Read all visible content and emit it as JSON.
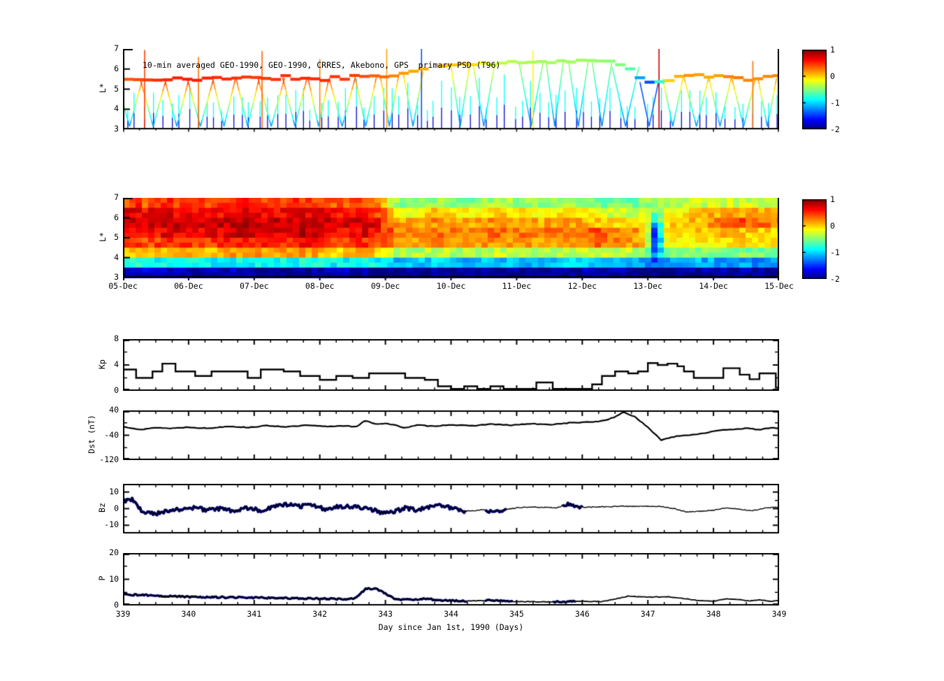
{
  "shared_x": {
    "label": "Day since Jan 1st, 1990 (Days)",
    "lim": [
      339,
      349
    ],
    "tick_values": [
      339,
      340,
      341,
      342,
      343,
      344,
      345,
      346,
      347,
      348,
      349
    ],
    "tick_labels": [
      "339",
      "340",
      "341",
      "342",
      "343",
      "344",
      "345",
      "346",
      "347",
      "348",
      "349"
    ],
    "minor_step": 0.25
  },
  "style": {
    "axis_color": "#000000",
    "background": "#ffffff",
    "highlight_color": "#000080"
  },
  "chart_data": [
    {
      "name": "psd-scatter",
      "type": "scatter",
      "title": "10-min averaged GEO-1990, GEO-1990, CRRES, Akebono, GPS  primary PSD (T96)",
      "ylabel": "L*",
      "ylim": [
        3,
        7
      ],
      "yticks": {
        "major": [
          7,
          6,
          5,
          4,
          3
        ],
        "labels": [
          "7",
          "6",
          "5",
          "4",
          "3"
        ]
      },
      "xlim": [
        339,
        349
      ],
      "colorbar": {
        "lim": [
          -2,
          1
        ],
        "tick_values": [
          1,
          0,
          -1,
          -2
        ],
        "tick_labels": [
          "1",
          "0",
          "-1",
          "-2"
        ]
      },
      "geo_band": {
        "t": [
          339.0,
          339.5,
          340.0,
          340.5,
          341.0,
          341.5,
          342.0,
          342.5,
          343.0,
          343.3,
          343.7,
          344.0,
          344.3,
          344.7,
          345.0,
          345.5,
          346.0,
          346.3,
          346.6,
          346.8,
          346.95,
          347.1,
          347.3,
          347.6,
          348.0,
          348.3,
          348.6,
          349.0
        ],
        "L": [
          5.5,
          5.45,
          5.5,
          5.6,
          5.5,
          5.6,
          5.5,
          5.6,
          5.7,
          5.8,
          6.1,
          6.2,
          6.3,
          6.3,
          6.3,
          6.4,
          6.45,
          6.4,
          6.2,
          5.9,
          5.4,
          5.3,
          5.5,
          5.6,
          5.7,
          5.6,
          5.5,
          5.6
        ],
        "psd": [
          0.35,
          0.5,
          0.55,
          0.5,
          0.45,
          0.5,
          0.5,
          0.45,
          0.3,
          0.15,
          0.1,
          0.05,
          0.0,
          -0.3,
          -0.35,
          -0.4,
          -0.4,
          -0.45,
          -0.5,
          -0.7,
          -1.6,
          -1.2,
          0.0,
          0.2,
          0.1,
          0.3,
          0.2,
          0.25
        ]
      },
      "crres_vees": {
        "t_start": 339.1,
        "period": 0.36,
        "half_width": 0.16,
        "L_bottom": 3.15,
        "psd_bottom": -1.3
      },
      "small_spikes": {
        "spacing": 0.134,
        "L_base": 3.0,
        "L_top_min": 3.9,
        "L_top_max": 5.1,
        "psd_top": -0.85,
        "psd_bottom": -1.75
      },
      "tall_spikes": [
        {
          "t": 339.33,
          "psd": 0.45,
          "L_top": 6.95
        },
        {
          "t": 340.15,
          "psd": 0.3,
          "L_top": 6.6
        },
        {
          "t": 341.12,
          "psd": 0.35,
          "L_top": 6.9
        },
        {
          "t": 342.0,
          "psd": 0.25,
          "L_top": 6.5
        },
        {
          "t": 343.02,
          "psd": 0.15,
          "L_top": 7.0
        },
        {
          "t": 343.55,
          "psd": -1.4,
          "L_top": 7.0
        },
        {
          "t": 345.25,
          "psd": -0.1,
          "L_top": 6.9
        },
        {
          "t": 347.17,
          "psd": 0.8,
          "L_top": 7.0
        },
        {
          "t": 348.6,
          "psd": 0.3,
          "L_top": 6.4
        }
      ]
    },
    {
      "name": "psd-heatmap",
      "type": "heatmap",
      "ylabel": "L*",
      "ylim": [
        3,
        7
      ],
      "yticks": {
        "major": [
          7,
          6,
          5,
          4,
          3
        ],
        "labels": [
          "7",
          "6",
          "5",
          "4",
          "3"
        ]
      },
      "xlim": [
        339,
        349
      ],
      "xtick_labels": [
        "05-Dec",
        "06-Dec",
        "07-Dec",
        "08-Dec",
        "09-Dec",
        "10-Dec",
        "11-Dec",
        "12-Dec",
        "13-Dec",
        "14-Dec",
        "15-Dec"
      ],
      "colorbar": {
        "lim": [
          -2,
          1
        ],
        "tick_values": [
          1,
          0,
          -1,
          -2
        ],
        "tick_labels": [
          "1",
          "0",
          "-1",
          "-2"
        ]
      },
      "grid": {
        "t0": 339,
        "dt": 0.5,
        "L_top": 7,
        "dL": 0.5,
        "rows": [
          [
            0.3,
            0.5,
            0.4,
            0.55,
            0.45,
            0.5,
            0.35,
            0.45,
            -0.55,
            -0.4,
            -0.5,
            -0.35,
            -0.45,
            -0.35,
            -0.5,
            -0.55,
            -0.4,
            -0.3,
            -0.25,
            -0.3
          ],
          [
            0.6,
            0.7,
            0.55,
            0.7,
            0.6,
            0.7,
            0.6,
            0.65,
            -0.15,
            0.0,
            -0.1,
            0.0,
            -0.1,
            0.0,
            -0.2,
            -0.3,
            -0.2,
            0.0,
            0.2,
            0.1
          ],
          [
            0.7,
            0.8,
            0.7,
            0.85,
            0.75,
            0.8,
            0.7,
            0.8,
            0.1,
            0.2,
            0.1,
            0.2,
            0.1,
            0.2,
            0.0,
            -0.1,
            0.0,
            0.1,
            0.45,
            0.3
          ],
          [
            0.55,
            0.7,
            0.6,
            0.8,
            0.7,
            0.8,
            0.6,
            0.7,
            0.2,
            0.3,
            0.2,
            0.3,
            0.25,
            0.3,
            0.4,
            0.2,
            0.0,
            0.0,
            0.1,
            0.0
          ],
          [
            0.4,
            0.5,
            0.45,
            0.6,
            0.5,
            0.6,
            0.45,
            0.5,
            0.1,
            0.2,
            0.1,
            0.2,
            0.15,
            0.2,
            0.3,
            0.2,
            -0.1,
            -0.1,
            0.0,
            -0.1
          ],
          [
            0.0,
            0.1,
            0.0,
            0.2,
            0.1,
            0.2,
            0.0,
            0.1,
            -0.4,
            -0.3,
            -0.4,
            -0.3,
            -0.4,
            -0.3,
            -0.25,
            -0.3,
            -0.6,
            -0.45,
            -0.5,
            -0.5
          ],
          [
            -0.9,
            -0.8,
            -0.9,
            -0.85,
            -0.9,
            -0.8,
            -0.9,
            -0.85,
            -1.1,
            -1.0,
            -1.1,
            -1.05,
            -1.1,
            -1.0,
            -1.1,
            -1.05,
            -1.2,
            -1.1,
            -1.15,
            -1.2
          ],
          [
            -1.7,
            -1.8,
            -1.9,
            -1.8,
            -2.0,
            -1.9,
            -1.8,
            -1.9,
            -2.0,
            -1.9,
            -2.0,
            -1.9,
            -2.0,
            -1.9,
            -1.85,
            -1.9,
            -2.0,
            -1.9,
            -1.85,
            -1.9
          ]
        ]
      },
      "dip": {
        "t": 347.12,
        "L": 5.1,
        "sigma_t": 0.1,
        "sigma_L": 0.9,
        "depth": 1.7
      }
    },
    {
      "name": "kp",
      "type": "step",
      "ylabel": "Kp",
      "ylim": [
        0,
        8
      ],
      "yticks": {
        "major": [
          8,
          4,
          0
        ],
        "labels": [
          "8",
          "4",
          "0"
        ],
        "minor": [
          2,
          6
        ]
      },
      "t": [
        339.0,
        339.2,
        339.45,
        339.6,
        339.8,
        340.1,
        340.35,
        340.9,
        341.1,
        341.45,
        341.7,
        342.0,
        342.25,
        342.5,
        342.75,
        343.3,
        343.6,
        343.8,
        344.0,
        344.2,
        344.4,
        344.6,
        344.8,
        345.3,
        345.55,
        346.15,
        346.3,
        346.5,
        346.7,
        346.85,
        347.0,
        347.15,
        347.3,
        347.45,
        347.55,
        347.7,
        348.05,
        348.15,
        348.4,
        348.55,
        348.7,
        348.95
      ],
      "v": [
        3.3,
        2.0,
        3.0,
        4.2,
        3.0,
        2.3,
        3.0,
        2.0,
        3.3,
        3.0,
        2.3,
        1.7,
        2.3,
        2.0,
        2.7,
        2.0,
        1.7,
        0.7,
        0.3,
        0.7,
        0.3,
        0.7,
        0.3,
        1.3,
        0.3,
        1.0,
        2.3,
        3.0,
        2.7,
        3.0,
        4.3,
        4.0,
        4.2,
        3.8,
        3.0,
        2.0,
        2.0,
        3.5,
        2.5,
        1.8,
        2.7,
        0.5
      ]
    },
    {
      "name": "dst",
      "type": "line",
      "ylabel": "Dst (nT)",
      "ylim": [
        -120,
        40
      ],
      "yticks": {
        "major": [
          40,
          -40,
          -120
        ],
        "labels": [
          "40",
          "-40",
          "-120"
        ],
        "minor": [
          0,
          -80
        ]
      },
      "noise": 1.2,
      "t": [
        339.0,
        339.3,
        339.5,
        339.7,
        340.0,
        340.3,
        340.6,
        340.9,
        341.2,
        341.5,
        341.8,
        342.1,
        342.4,
        342.55,
        342.7,
        342.85,
        343.0,
        343.15,
        343.3,
        343.5,
        343.7,
        344.0,
        344.3,
        344.6,
        344.9,
        345.2,
        345.5,
        345.8,
        346.1,
        346.3,
        346.5,
        346.62,
        346.8,
        347.0,
        347.2,
        347.45,
        347.7,
        348.0,
        348.2,
        348.5,
        348.7,
        348.9,
        349.0
      ],
      "v": [
        -12,
        -22,
        -15,
        -18,
        -14,
        -18,
        -11,
        -15,
        -9,
        -13,
        -8,
        -12,
        -9,
        -14,
        8,
        -4,
        -2,
        -8,
        -16,
        -7,
        -11,
        -6,
        -10,
        -4,
        -8,
        -3,
        -6,
        0,
        2,
        6,
        18,
        35,
        20,
        -15,
        -55,
        -42,
        -38,
        -28,
        -22,
        -18,
        -22,
        -16,
        -17
      ]
    },
    {
      "name": "bz",
      "type": "line",
      "ylabel": "Bz",
      "ylim": [
        -15,
        15
      ],
      "yticks": {
        "major": [
          10,
          0,
          -10
        ],
        "labels": [
          "10",
          "0",
          "-10"
        ],
        "minor": [
          5,
          -5
        ]
      },
      "noise_hi": 1.2,
      "noise_lo": 0.25,
      "highlight_segments": [
        [
          339.0,
          344.22
        ],
        [
          344.5,
          344.85
        ],
        [
          345.68,
          346.0
        ]
      ],
      "highlight_color": "#000080",
      "t": [
        339.0,
        339.15,
        339.3,
        339.5,
        339.7,
        339.9,
        340.1,
        340.3,
        340.5,
        340.7,
        340.9,
        341.1,
        341.3,
        341.5,
        341.7,
        341.9,
        342.1,
        342.3,
        342.5,
        342.7,
        342.9,
        343.1,
        343.3,
        343.5,
        343.7,
        343.9,
        344.1,
        344.3,
        344.5,
        344.65,
        344.8,
        345.0,
        345.2,
        345.4,
        345.6,
        345.8,
        346.0,
        346.2,
        346.4,
        346.6,
        346.8,
        347.0,
        347.2,
        347.4,
        347.6,
        347.8,
        348.0,
        348.2,
        348.4,
        348.6,
        348.8,
        349.0
      ],
      "v": [
        4.5,
        5.5,
        -2.5,
        -3.0,
        -1.0,
        -0.5,
        0.5,
        -1.0,
        0.0,
        -1.5,
        0.5,
        -1.0,
        1.0,
        2.5,
        1.5,
        2.0,
        -0.5,
        1.5,
        1.0,
        0.5,
        -2.0,
        -2.5,
        0.5,
        -1.0,
        1.5,
        2.0,
        -1.0,
        -1.5,
        -0.5,
        -2.0,
        -1.0,
        0.5,
        1.0,
        0.8,
        0.5,
        2.5,
        0.8,
        1.0,
        1.2,
        1.5,
        1.2,
        1.5,
        1.3,
        0.0,
        -2.0,
        -1.5,
        -1.0,
        0.5,
        -0.5,
        -1.2,
        0.5,
        1.0
      ]
    },
    {
      "name": "p",
      "type": "line",
      "ylabel": "P",
      "ylim": [
        0,
        20
      ],
      "yticks": {
        "major": [
          20,
          10,
          0
        ],
        "labels": [
          "20",
          "10",
          "0"
        ],
        "minor": [
          5,
          15
        ]
      },
      "noise_hi": 0.3,
      "noise_lo": 0.12,
      "highlight_segments": [
        [
          339.0,
          344.25
        ],
        [
          344.5,
          344.95
        ],
        [
          345.55,
          345.9
        ]
      ],
      "highlight_color": "#000080",
      "t": [
        339.0,
        339.5,
        340.0,
        340.5,
        341.0,
        341.5,
        342.0,
        342.4,
        342.55,
        342.7,
        342.85,
        343.0,
        343.15,
        343.4,
        343.6,
        343.8,
        344.2,
        344.6,
        345.0,
        345.5,
        346.0,
        346.3,
        346.5,
        346.7,
        347.0,
        347.3,
        347.5,
        347.8,
        348.0,
        348.2,
        348.4,
        348.55,
        348.7,
        348.85,
        349.0
      ],
      "v": [
        4.2,
        3.8,
        3.3,
        3.1,
        3.0,
        2.8,
        2.6,
        2.4,
        3.0,
        6.3,
        6.5,
        4.5,
        2.4,
        2.1,
        2.7,
        2.0,
        1.7,
        1.9,
        1.5,
        1.4,
        1.6,
        1.5,
        2.5,
        3.5,
        3.2,
        3.3,
        2.8,
        1.8,
        1.6,
        2.5,
        2.3,
        1.7,
        2.2,
        1.6,
        1.9
      ]
    }
  ]
}
